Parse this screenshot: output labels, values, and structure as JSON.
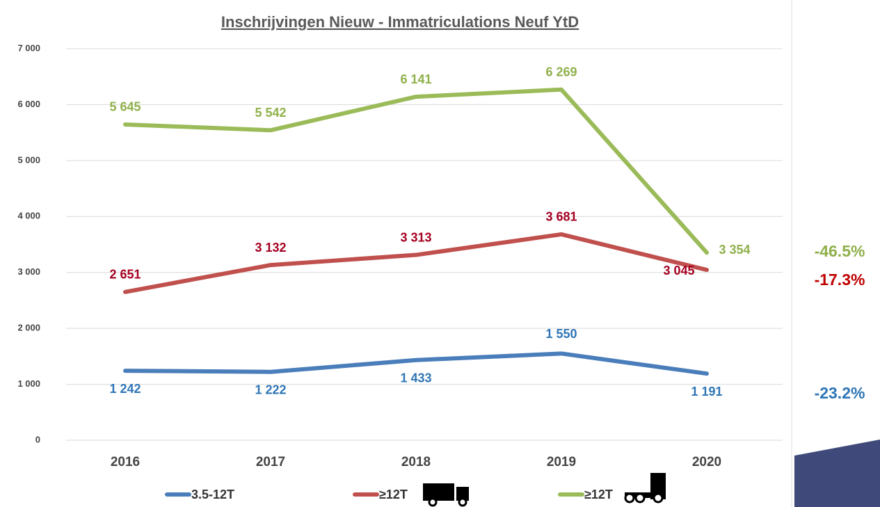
{
  "chart_data": {
    "type": "line",
    "title": "Inschrijvingen Nieuw - Immatriculations Neuf YtD",
    "categories": [
      "2016",
      "2017",
      "2018",
      "2019",
      "2020"
    ],
    "series": [
      {
        "name": "3.5-12T",
        "color": "#4a7ebb",
        "label_color": "#2e75b6",
        "values": [
          1242,
          1222,
          1433,
          1550,
          1191
        ],
        "value_labels": [
          "1 242",
          "1 222",
          "1 433",
          "1 550",
          "1 191"
        ]
      },
      {
        "name": "≥12T",
        "color": "#c0504d",
        "label_color": "#a50021",
        "values": [
          2651,
          3132,
          3313,
          3681,
          3045
        ],
        "value_labels": [
          "2 651",
          "3 132",
          "3 313",
          "3 681",
          "3 045"
        ]
      },
      {
        "name": "≥12T",
        "color": "#9bbb59",
        "label_color": "#8fb04a",
        "values": [
          5645,
          5542,
          6141,
          6269,
          3354
        ],
        "value_labels": [
          "5 645",
          "5 542",
          "6 141",
          "6 269",
          "3 354"
        ]
      }
    ],
    "annotations": [
      {
        "text": "-46.5%",
        "color": "#8fb04a"
      },
      {
        "text": "-17.3%",
        "color": "#c00000"
      },
      {
        "text": "-23.2%",
        "color": "#2e75b6"
      }
    ],
    "ylim": [
      0,
      7000
    ],
    "yticks": [
      0,
      {
        "value": 1000,
        "label": "1 000"
      },
      {
        "value": 2000,
        "label": "2 000"
      },
      {
        "value": 3000,
        "label": "3 000"
      },
      {
        "value": 4000,
        "label": "4 000"
      },
      {
        "value": 5000,
        "label": "5 000"
      },
      {
        "value": 6000,
        "label": "6 000"
      },
      {
        "value": 7000,
        "label": "7 000"
      }
    ],
    "grid": true
  }
}
